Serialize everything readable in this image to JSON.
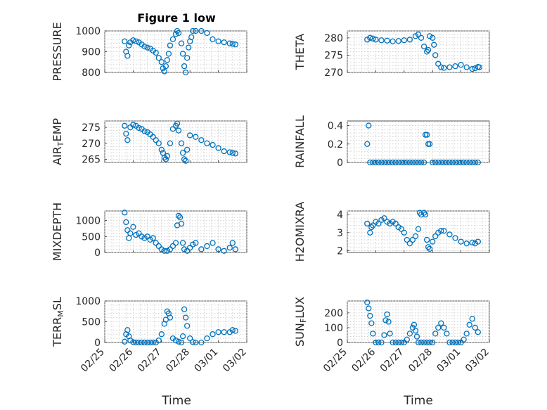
{
  "figure_title": "Figure 1 low",
  "x_axis_label": "Time",
  "x_ticks": [
    "02/25",
    "02/26",
    "02/27",
    "02/28",
    "03/01",
    "03/02"
  ],
  "marker_color": "#0072BD",
  "chart_data": [
    {
      "type": "scatter",
      "id": "pressure",
      "ylabel": "PRESSURE",
      "ylim": [
        800,
        1000
      ],
      "yticks": [
        800,
        900,
        1000
      ],
      "grid": true,
      "x": [
        0.7,
        0.75,
        0.8,
        0.85,
        0.9,
        1.0,
        1.1,
        1.2,
        1.3,
        1.4,
        1.5,
        1.6,
        1.7,
        1.8,
        1.9,
        2.0,
        2.05,
        2.1,
        2.15,
        2.2,
        2.25,
        2.3,
        2.4,
        2.5,
        2.55,
        2.6,
        2.7,
        2.75,
        2.8,
        2.85,
        2.9,
        2.95,
        3.0,
        3.05,
        3.1,
        3.2,
        3.4,
        3.6,
        3.8,
        4.0,
        4.2,
        4.4,
        4.5,
        4.6
      ],
      "y": [
        950,
        900,
        880,
        930,
        945,
        955,
        950,
        945,
        935,
        925,
        920,
        915,
        905,
        895,
        870,
        850,
        820,
        805,
        830,
        860,
        890,
        930,
        960,
        985,
        1000,
        990,
        940,
        890,
        830,
        800,
        870,
        920,
        950,
        970,
        1000,
        1005,
        1000,
        990,
        960,
        950,
        945,
        940,
        938,
        935
      ]
    },
    {
      "type": "scatter",
      "id": "theta",
      "ylabel": "THETA",
      "ylim": [
        270,
        282
      ],
      "yticks": [
        270,
        275,
        280
      ],
      "grid": true,
      "x": [
        0.7,
        0.8,
        0.9,
        1.0,
        1.2,
        1.4,
        1.6,
        1.8,
        2.0,
        2.2,
        2.4,
        2.5,
        2.6,
        2.7,
        2.8,
        2.85,
        2.9,
        3.0,
        3.05,
        3.1,
        3.2,
        3.3,
        3.4,
        3.6,
        3.8,
        4.0,
        4.2,
        4.4,
        4.5,
        4.6,
        4.65
      ],
      "y": [
        279.5,
        280,
        279.8,
        279.5,
        279.3,
        279.2,
        279,
        279.1,
        279.3,
        279.5,
        280.5,
        281,
        280,
        277.5,
        276,
        276.5,
        280.5,
        280,
        278,
        275,
        272.5,
        271.5,
        271.3,
        271.5,
        271.8,
        272.2,
        271.5,
        271,
        271.2,
        271.6,
        271.5
      ]
    },
    {
      "type": "scatter",
      "id": "air_temp",
      "ylabel": "AIR_TEMP",
      "ylim": [
        264,
        277
      ],
      "yticks": [
        265,
        270,
        275
      ],
      "grid": true,
      "x": [
        0.7,
        0.75,
        0.8,
        0.9,
        1.0,
        1.1,
        1.2,
        1.3,
        1.4,
        1.5,
        1.6,
        1.7,
        1.8,
        1.9,
        2.0,
        2.05,
        2.1,
        2.15,
        2.2,
        2.3,
        2.4,
        2.5,
        2.55,
        2.6,
        2.7,
        2.75,
        2.8,
        2.85,
        2.9,
        3.0,
        3.2,
        3.4,
        3.6,
        3.8,
        4.0,
        4.2,
        4.4,
        4.5,
        4.6
      ],
      "y": [
        275.5,
        273,
        271,
        275,
        275.8,
        275.5,
        274.8,
        274.5,
        273.8,
        273.5,
        272.8,
        272,
        271,
        270,
        268,
        267,
        265.5,
        265,
        266,
        270,
        274.5,
        275.5,
        276.2,
        274,
        270,
        267,
        265,
        264.5,
        268,
        272.5,
        272,
        271,
        270,
        269.5,
        268.5,
        267.5,
        267.2,
        267,
        266.8
      ]
    },
    {
      "type": "scatter",
      "id": "rainfall",
      "ylabel": "RAINFALL",
      "ylim": [
        0,
        0.45
      ],
      "yticks": [
        0,
        0.2,
        0.4
      ],
      "grid": true,
      "x": [
        0.7,
        0.75,
        0.8,
        0.9,
        1.0,
        1.1,
        1.2,
        1.3,
        1.4,
        1.5,
        1.6,
        1.7,
        1.8,
        1.9,
        2.0,
        2.1,
        2.2,
        2.3,
        2.4,
        2.5,
        2.6,
        2.7,
        2.75,
        2.8,
        2.85,
        2.9,
        3.0,
        3.1,
        3.2,
        3.3,
        3.4,
        3.5,
        3.6,
        3.7,
        3.8,
        3.9,
        4.0,
        4.1,
        4.2,
        4.3,
        4.4,
        4.5,
        4.6
      ],
      "y": [
        0.2,
        0.4,
        0,
        0,
        0,
        0,
        0,
        0,
        0,
        0,
        0,
        0,
        0,
        0,
        0,
        0,
        0,
        0,
        0,
        0,
        0,
        0,
        0.3,
        0.3,
        0.2,
        0.2,
        0,
        0,
        0,
        0,
        0,
        0,
        0,
        0,
        0,
        0,
        0,
        0,
        0,
        0,
        0,
        0,
        0
      ]
    },
    {
      "type": "scatter",
      "id": "mixdepth",
      "ylabel": "MIXDEPTH",
      "ylim": [
        0,
        1300
      ],
      "yticks": [
        0,
        500,
        1000
      ],
      "grid": true,
      "x": [
        0.7,
        0.75,
        0.8,
        0.85,
        0.9,
        1.0,
        1.1,
        1.2,
        1.3,
        1.4,
        1.5,
        1.6,
        1.7,
        1.8,
        1.9,
        2.0,
        2.1,
        2.2,
        2.3,
        2.4,
        2.5,
        2.55,
        2.6,
        2.65,
        2.7,
        2.75,
        2.8,
        2.9,
        3.0,
        3.1,
        3.2,
        3.4,
        3.6,
        3.8,
        4.0,
        4.2,
        4.4,
        4.5,
        4.6
      ],
      "y": [
        1250,
        950,
        700,
        450,
        600,
        800,
        550,
        600,
        500,
        450,
        500,
        400,
        450,
        300,
        200,
        100,
        50,
        50,
        100,
        200,
        300,
        850,
        1150,
        1100,
        900,
        300,
        100,
        50,
        150,
        250,
        300,
        100,
        200,
        300,
        100,
        50,
        150,
        300,
        100
      ]
    },
    {
      "type": "scatter",
      "id": "h2omixra",
      "ylabel": "H2OMIXRA",
      "ylim": [
        1.9,
        4.2
      ],
      "yticks": [
        2,
        3,
        4
      ],
      "grid": true,
      "x": [
        0.7,
        0.8,
        0.85,
        0.9,
        1.0,
        1.1,
        1.2,
        1.3,
        1.4,
        1.5,
        1.6,
        1.7,
        1.8,
        1.9,
        2.0,
        2.1,
        2.2,
        2.3,
        2.4,
        2.5,
        2.55,
        2.6,
        2.7,
        2.75,
        2.8,
        2.85,
        2.9,
        3.0,
        3.1,
        3.2,
        3.3,
        3.4,
        3.6,
        3.8,
        4.0,
        4.2,
        4.4,
        4.5,
        4.6
      ],
      "y": [
        3.5,
        3.0,
        3.3,
        3.4,
        3.6,
        3.5,
        3.7,
        3.8,
        3.6,
        3.5,
        3.6,
        3.5,
        3.3,
        3.2,
        3.0,
        2.6,
        2.4,
        2.6,
        2.8,
        3.2,
        4.1,
        4.0,
        4.1,
        4.0,
        2.6,
        2.2,
        2.1,
        2.5,
        2.8,
        3.0,
        3.1,
        3.1,
        2.9,
        2.7,
        2.5,
        2.4,
        2.45,
        2.4,
        2.5
      ]
    },
    {
      "type": "scatter",
      "id": "terr_msl",
      "ylabel": "TERR_MSL",
      "ylim": [
        0,
        1000
      ],
      "yticks": [
        0,
        500,
        1000
      ],
      "grid": true,
      "x": [
        0.7,
        0.75,
        0.8,
        0.85,
        0.9,
        1.0,
        1.1,
        1.2,
        1.3,
        1.4,
        1.5,
        1.6,
        1.7,
        1.8,
        1.9,
        2.0,
        2.1,
        2.15,
        2.2,
        2.25,
        2.3,
        2.4,
        2.5,
        2.6,
        2.7,
        2.75,
        2.8,
        2.85,
        2.9,
        3.0,
        3.1,
        3.2,
        3.4,
        3.6,
        3.8,
        4.0,
        4.2,
        4.4,
        4.5,
        4.6
      ],
      "y": [
        20,
        200,
        300,
        150,
        50,
        10,
        0,
        0,
        0,
        0,
        0,
        0,
        0,
        0,
        50,
        200,
        450,
        550,
        750,
        700,
        600,
        100,
        50,
        20,
        0,
        150,
        800,
        600,
        400,
        100,
        10,
        0,
        0,
        100,
        200,
        250,
        250,
        250,
        300,
        280
      ]
    },
    {
      "type": "scatter",
      "id": "sun_flux",
      "ylabel": "SUN_FLUX",
      "ylim": [
        0,
        280
      ],
      "yticks": [
        0,
        100,
        200
      ],
      "grid": true,
      "x": [
        0.7,
        0.75,
        0.8,
        0.85,
        0.9,
        1.0,
        1.1,
        1.2,
        1.3,
        1.35,
        1.4,
        1.45,
        1.5,
        1.6,
        1.7,
        1.8,
        1.9,
        2.0,
        2.1,
        2.2,
        2.3,
        2.35,
        2.4,
        2.45,
        2.5,
        2.6,
        2.7,
        2.8,
        2.9,
        3.0,
        3.1,
        3.2,
        3.3,
        3.4,
        3.5,
        3.6,
        3.7,
        3.8,
        3.9,
        4.0,
        4.1,
        4.2,
        4.3,
        4.4,
        4.5,
        4.6
      ],
      "y": [
        270,
        230,
        180,
        130,
        60,
        0,
        0,
        0,
        50,
        150,
        190,
        140,
        60,
        0,
        0,
        0,
        0,
        0,
        20,
        60,
        100,
        120,
        80,
        40,
        0,
        0,
        0,
        0,
        0,
        0,
        60,
        100,
        130,
        100,
        60,
        0,
        0,
        0,
        0,
        0,
        20,
        60,
        120,
        160,
        100,
        70
      ]
    }
  ]
}
